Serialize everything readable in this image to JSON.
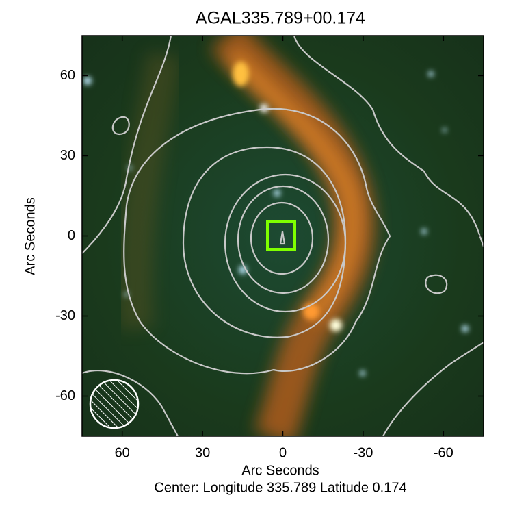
{
  "chart_data": {
    "type": "image",
    "title": "AGAL335.789+00.174",
    "x_label": "Arc Seconds",
    "y_label": "Arc Seconds",
    "caption": "Center:  Longitude 335.789 Latitude 0.174",
    "xlim": [
      75,
      -75
    ],
    "ylim": [
      -75,
      75
    ],
    "xticks": [
      60,
      30,
      0,
      -30,
      -60
    ],
    "yticks": [
      -60,
      -30,
      0,
      30,
      60
    ]
  }
}
